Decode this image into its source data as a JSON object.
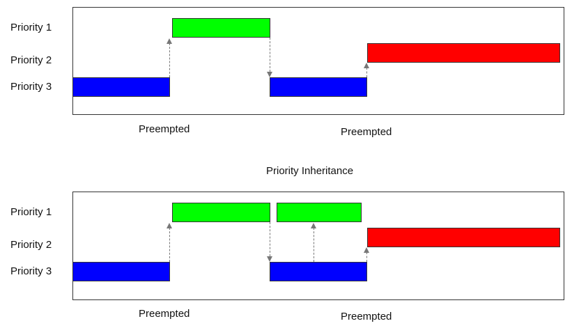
{
  "colors": {
    "priority_1": "#00ff00",
    "priority_2": "#ff0000",
    "priority_3": "#0000ff",
    "frame": "#333333",
    "arrow": "#777777"
  },
  "top_diagram": {
    "row_labels": {
      "p1": "Priority 1",
      "p2": "Priority 2",
      "p3": "Priority 3"
    },
    "annotations": {
      "preempted_1": "Preempted",
      "preempted_2": "Preempted"
    }
  },
  "section_title": "Priority Inheritance",
  "bottom_diagram": {
    "row_labels": {
      "p1": "Priority 1",
      "p2": "Priority 2",
      "p3": "Priority 3"
    },
    "annotations": {
      "preempted_1": "Preempted",
      "preempted_2": "Preempted"
    }
  }
}
